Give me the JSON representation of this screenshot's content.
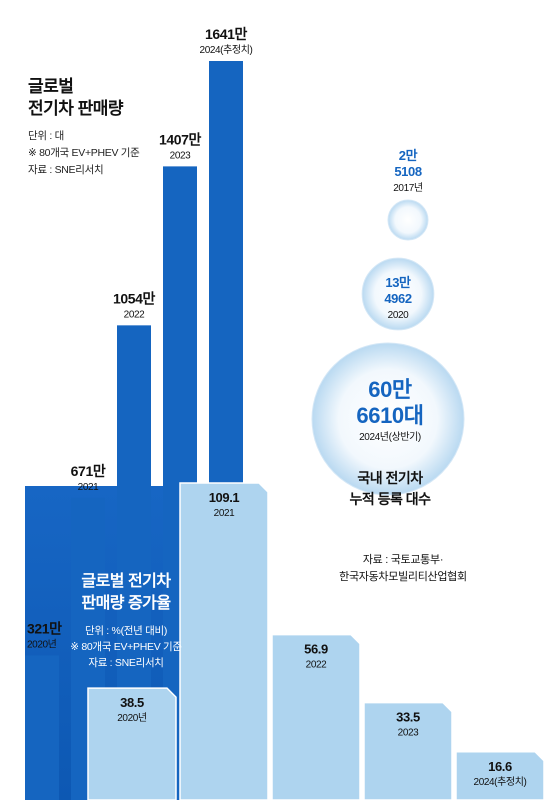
{
  "global_sales": {
    "title_lines": [
      "글로벌",
      "전기차 판매량"
    ],
    "unit": "단위 : 대",
    "note": "※ 80개국 EV+PHEV 기준",
    "source": "자료 : SNE리서치",
    "color": "#1565c0"
  },
  "growth": {
    "title_lines": [
      "글로벌 전기차",
      "판매량 증가율"
    ],
    "unit": "단위 : %(전년 대비)",
    "note": "※ 80개국 EV+PHEV 기준",
    "source": "자료 : SNE리서치",
    "color": "#aed4ef"
  },
  "domestic": {
    "label_lines": [
      "국내 전기차",
      "누적 등록 대수"
    ],
    "source_lines": [
      "자료 : 국토교통부·",
      "한국자동차모빌리티산업협회"
    ],
    "color": "#1565c0"
  },
  "chart_data": [
    {
      "type": "bar",
      "series": [
        {
          "name": "글로벌 전기차 판매량",
          "values": [
            321,
            671,
            1054,
            1407,
            1641
          ]
        }
      ],
      "value_labels": [
        "321만",
        "671만",
        "1054만",
        "1407만",
        "1641만"
      ],
      "categories": [
        "2020년",
        "2021",
        "2022",
        "2023",
        "2024(추정치)"
      ]
    },
    {
      "type": "bar",
      "series": [
        {
          "name": "글로벌 전기차 판매량 증가율",
          "values": [
            38.5,
            109.1,
            56.9,
            33.5,
            16.6
          ]
        }
      ],
      "value_labels": [
        "38.5",
        "109.1",
        "56.9",
        "33.5",
        "16.6"
      ],
      "categories": [
        "2020년",
        "2021",
        "2022",
        "2023",
        "2024(추정치)"
      ]
    },
    {
      "type": "bubble",
      "series": [
        {
          "name": "국내 전기차 누적 등록 대수",
          "values": [
            25108,
            134962,
            606610
          ]
        }
      ],
      "value_labels": [
        [
          "2만",
          "5108"
        ],
        [
          "13만",
          "4962"
        ],
        [
          "60만",
          "6610대"
        ]
      ],
      "categories": [
        "2017년",
        "2020",
        "2024년(상반기)"
      ]
    }
  ]
}
